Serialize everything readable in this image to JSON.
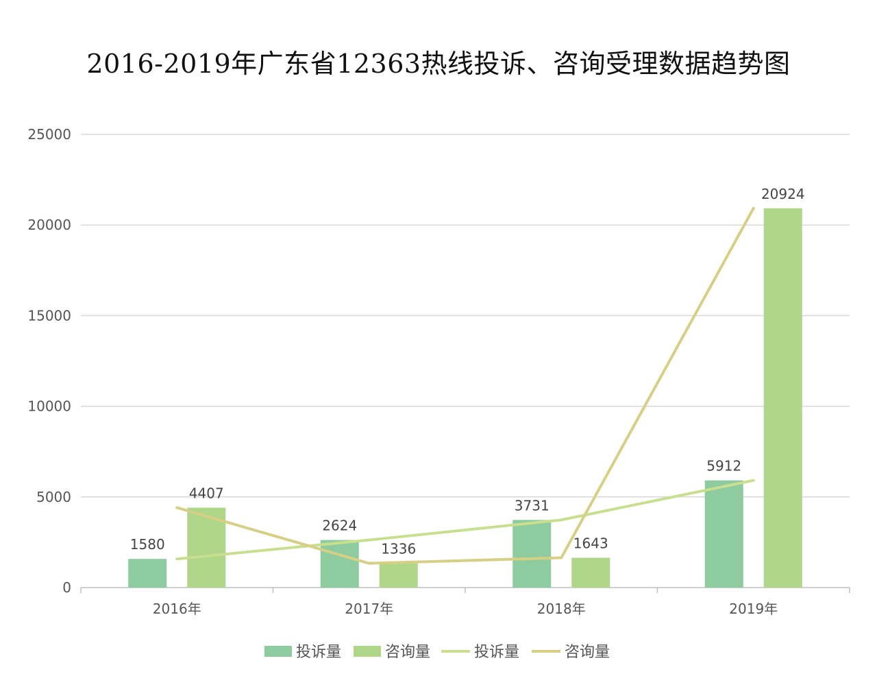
{
  "chart_data": {
    "type": "bar",
    "title": "2016-2019年广东省12363热线投诉、咨询受理数据趋势图",
    "categories": [
      "2016年",
      "2017年",
      "2018年",
      "2019年"
    ],
    "ylim": [
      0,
      25000
    ],
    "yticks": [
      0,
      5000,
      10000,
      15000,
      20000,
      25000
    ],
    "grid": true,
    "legend_position": "bottom",
    "series": [
      {
        "name": "投诉量",
        "kind": "bar",
        "color": "#8ECB9F",
        "values": [
          1580,
          2624,
          3731,
          5912
        ]
      },
      {
        "name": "咨询量",
        "kind": "bar",
        "color": "#B0D68A",
        "values": [
          4407,
          1336,
          1643,
          20924
        ]
      },
      {
        "name": "投诉量",
        "kind": "line",
        "color": "#C7DF8E",
        "values": [
          1580,
          2624,
          3731,
          5912
        ]
      },
      {
        "name": "咨询量",
        "kind": "line",
        "color": "#D6CF86",
        "values": [
          4407,
          1336,
          1643,
          20924
        ]
      }
    ],
    "colors": {
      "grid": "#d9d9d9",
      "axis": "#bfbfbf"
    }
  }
}
